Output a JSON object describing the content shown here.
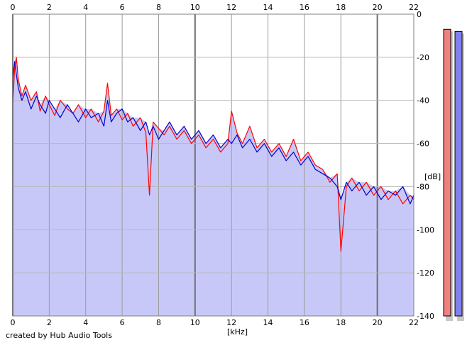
{
  "app": {
    "credit": "created by Hub Audio Tools"
  },
  "chart_data": {
    "type": "line",
    "xlabel": "[kHz]",
    "ylabel": "[dB]",
    "xlim": [
      0,
      22
    ],
    "ylim": [
      -140,
      0
    ],
    "x_ticks": [
      0,
      2,
      4,
      6,
      8,
      10,
      12,
      14,
      16,
      18,
      20,
      22
    ],
    "y_ticks": [
      0,
      -20,
      -40,
      -60,
      -80,
      -100,
      -120,
      -140
    ],
    "grid": true,
    "fill_below": true,
    "fill_color": "#c8c8f8",
    "series": [
      {
        "color": "#ff0000",
        "x": [
          0,
          0.1,
          0.2,
          0.3,
          0.5,
          0.7,
          1.0,
          1.3,
          1.5,
          1.8,
          2.0,
          2.3,
          2.6,
          3.0,
          3.3,
          3.6,
          4.0,
          4.3,
          4.7,
          5.0,
          5.2,
          5.4,
          5.7,
          6.0,
          6.3,
          6.6,
          7.0,
          7.3,
          7.5,
          7.7,
          8.0,
          8.3,
          8.6,
          9.0,
          9.4,
          9.8,
          10.2,
          10.6,
          11.0,
          11.4,
          11.8,
          12.0,
          12.3,
          12.6,
          13.0,
          13.4,
          13.8,
          14.2,
          14.6,
          15.0,
          15.4,
          15.8,
          16.2,
          16.6,
          17.0,
          17.4,
          17.8,
          18.0,
          18.3,
          18.6,
          19.0,
          19.4,
          19.8,
          20.2,
          20.6,
          21.0,
          21.4,
          21.8,
          22.0
        ],
        "y": [
          -42,
          -25,
          -20,
          -30,
          -38,
          -33,
          -40,
          -36,
          -45,
          -38,
          -42,
          -47,
          -40,
          -44,
          -46,
          -42,
          -48,
          -44,
          -50,
          -45,
          -32,
          -47,
          -44,
          -49,
          -46,
          -52,
          -48,
          -55,
          -84,
          -50,
          -53,
          -56,
          -52,
          -58,
          -54,
          -60,
          -56,
          -62,
          -58,
          -64,
          -60,
          -45,
          -55,
          -60,
          -52,
          -62,
          -58,
          -64,
          -60,
          -66,
          -58,
          -68,
          -64,
          -70,
          -72,
          -78,
          -74,
          -110,
          -80,
          -76,
          -82,
          -78,
          -84,
          -80,
          -86,
          -82,
          -88,
          -84,
          -86
        ]
      },
      {
        "color": "#0000cc",
        "x": [
          0,
          0.1,
          0.2,
          0.3,
          0.5,
          0.7,
          1.0,
          1.3,
          1.5,
          1.8,
          2.0,
          2.3,
          2.6,
          3.0,
          3.3,
          3.6,
          4.0,
          4.3,
          4.7,
          5.0,
          5.2,
          5.4,
          5.7,
          6.0,
          6.3,
          6.6,
          7.0,
          7.3,
          7.5,
          7.7,
          8.0,
          8.3,
          8.6,
          9.0,
          9.4,
          9.8,
          10.2,
          10.6,
          11.0,
          11.4,
          11.8,
          12.0,
          12.3,
          12.6,
          13.0,
          13.4,
          13.8,
          14.2,
          14.6,
          15.0,
          15.4,
          15.8,
          16.2,
          16.6,
          17.0,
          17.4,
          17.8,
          18.0,
          18.3,
          18.6,
          19.0,
          19.4,
          19.8,
          20.2,
          20.6,
          21.0,
          21.4,
          21.8,
          22.0
        ],
        "y": [
          -30,
          -22,
          -28,
          -34,
          -40,
          -36,
          -44,
          -38,
          -42,
          -46,
          -40,
          -44,
          -48,
          -42,
          -46,
          -50,
          -44,
          -48,
          -46,
          -52,
          -40,
          -50,
          -46,
          -44,
          -50,
          -48,
          -54,
          -50,
          -56,
          -52,
          -58,
          -54,
          -50,
          -56,
          -52,
          -58,
          -54,
          -60,
          -56,
          -62,
          -58,
          -60,
          -56,
          -62,
          -58,
          -64,
          -60,
          -66,
          -62,
          -68,
          -64,
          -70,
          -66,
          -72,
          -74,
          -76,
          -80,
          -86,
          -78,
          -82,
          -78,
          -84,
          -80,
          -86,
          -82,
          -84,
          -80,
          -88,
          -84
        ]
      }
    ]
  },
  "level_meters": [
    {
      "color": "#f08080",
      "level_db": -7
    },
    {
      "color": "#8080f0",
      "level_db": -8
    }
  ]
}
